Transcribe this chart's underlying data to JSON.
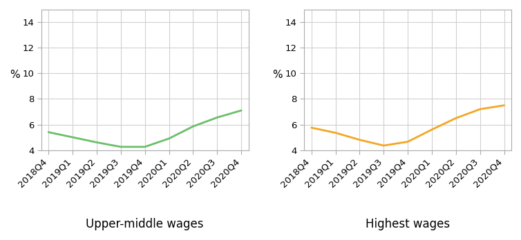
{
  "categories": [
    "2018Q4",
    "2019Q1",
    "2019Q2",
    "2019Q3",
    "2019Q4",
    "2020Q1",
    "2020Q2",
    "2020Q3",
    "2020Q4"
  ],
  "left_values": [
    5.4,
    5.0,
    4.6,
    4.25,
    4.25,
    4.9,
    5.85,
    6.55,
    7.1
  ],
  "right_values": [
    5.75,
    5.35,
    4.8,
    4.35,
    4.65,
    5.6,
    6.5,
    7.2,
    7.5
  ],
  "left_color": "#6abf69",
  "right_color": "#f5a623",
  "left_label": "Upper-middle wages",
  "right_label": "Highest wages",
  "ylabel": "%",
  "ylim": [
    4,
    15
  ],
  "yticks": [
    4,
    6,
    8,
    10,
    12,
    14
  ],
  "bg_color": "#ffffff",
  "fig_bg_color": "#ffffff",
  "grid_color": "#d0d0d0",
  "line_width": 2.0,
  "label_fontsize": 12,
  "tick_fontsize": 9.5,
  "ylabel_fontsize": 11
}
